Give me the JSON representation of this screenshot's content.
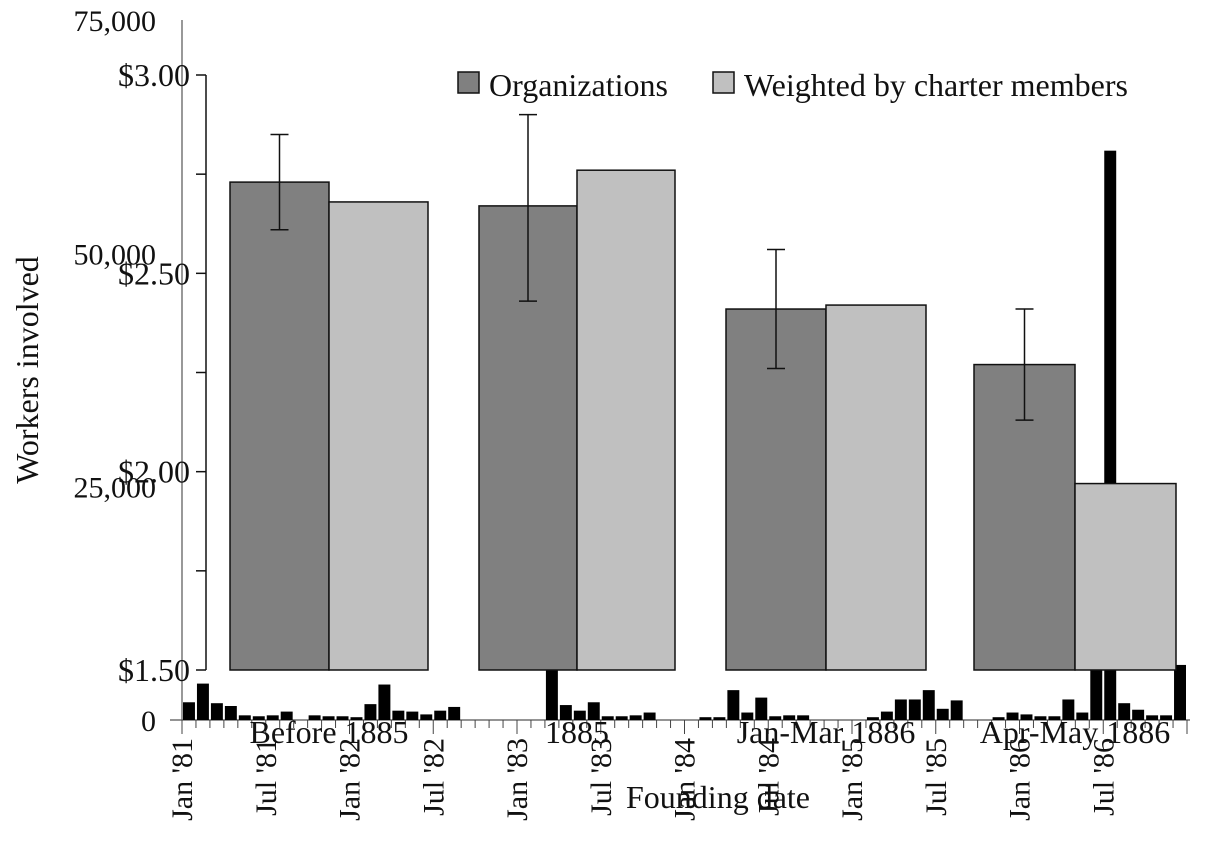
{
  "chart_data": [
    {
      "type": "bar",
      "title": "",
      "xlabel": "Founding date",
      "ylabel": "Workers involved",
      "ylim": [
        0,
        75000
      ],
      "yticks": [
        0,
        25000,
        50000,
        75000
      ],
      "ytick_labels": [
        "0",
        "25,000",
        "50,000",
        "75,000"
      ],
      "xtick_labels": [
        "Jan '81",
        "Jul '81",
        "Jan '82",
        "Jul '82",
        "Jan '83",
        "Jul '83",
        "Jan '84",
        "Jul '84",
        "Jan '85",
        "Jul '85",
        "Jan '86",
        "Jul '86"
      ],
      "months": 72,
      "color": "#000000",
      "values": [
        1900,
        3900,
        1800,
        1500,
        500,
        400,
        500,
        900,
        0,
        500,
        400,
        400,
        300,
        1700,
        3800,
        1000,
        900,
        600,
        1000,
        1400,
        0,
        0,
        0,
        0,
        0,
        0,
        6300,
        1600,
        1000,
        1900,
        400,
        400,
        500,
        800,
        0,
        0,
        0,
        300,
        300,
        3200,
        800,
        2400,
        400,
        500,
        500,
        0,
        0,
        0,
        0,
        300,
        900,
        2200,
        2200,
        3200,
        1200,
        2100,
        0,
        0,
        300,
        800,
        600,
        400,
        400,
        2200,
        800,
        5700,
        61000,
        1800,
        1100,
        500,
        500,
        5900
      ]
    },
    {
      "type": "bar",
      "title": "",
      "ylabel": "",
      "ylim": [
        1.5,
        3.0
      ],
      "yticks": [
        1.5,
        2.0,
        2.5,
        3.0
      ],
      "ytick_labels": [
        "$1.50",
        "$2.00",
        "$2.50",
        "$3.00"
      ],
      "categories": [
        "Before 1885",
        "1885",
        "Jan-Mar 1886",
        "Apr-May 1886"
      ],
      "legend_position": "top-right",
      "series": [
        {
          "name": "Organizations",
          "color": "#808080",
          "values": [
            2.73,
            2.67,
            2.41,
            2.27
          ],
          "error_low": [
            2.61,
            2.43,
            2.26,
            2.13
          ],
          "error_high": [
            2.85,
            2.9,
            2.56,
            2.41
          ]
        },
        {
          "name": "Weighted by charter members",
          "color": "#c0c0c0",
          "values": [
            2.68,
            2.76,
            2.42,
            1.97
          ]
        }
      ]
    }
  ]
}
